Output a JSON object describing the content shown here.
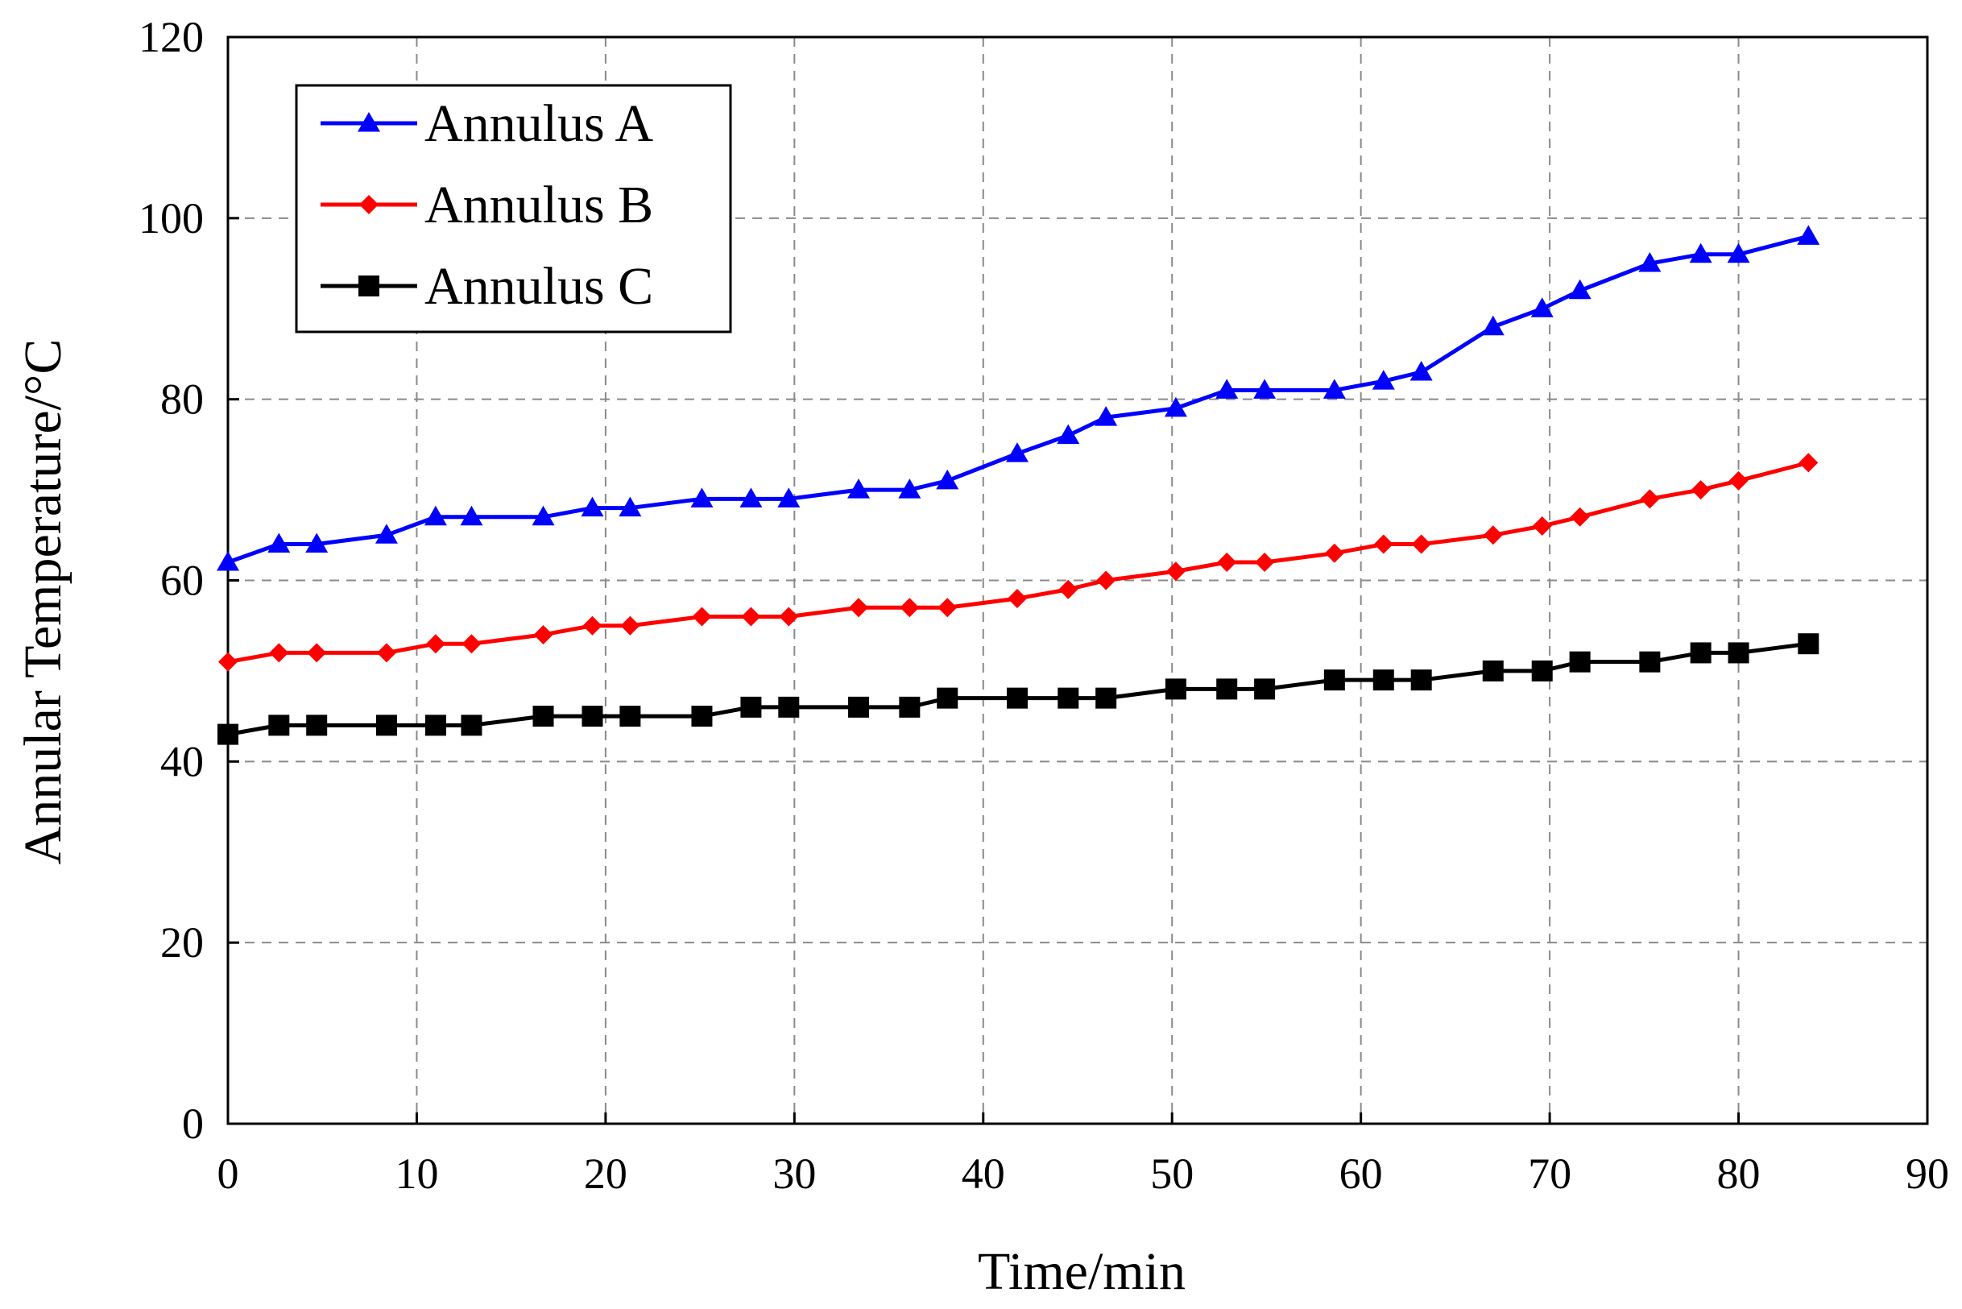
{
  "chart_data": {
    "type": "line",
    "title": "",
    "xlabel": "Time/min",
    "ylabel": "Annular Temperature/°C",
    "xlim": [
      0,
      90
    ],
    "ylim": [
      0,
      120
    ],
    "xticks": [
      0,
      10,
      20,
      30,
      40,
      50,
      60,
      70,
      80,
      90
    ],
    "yticks": [
      0,
      20,
      40,
      60,
      80,
      100,
      120
    ],
    "grid": true,
    "legend_position": "top-left",
    "series": [
      {
        "name": "Annulus A",
        "color": "#0000ff",
        "marker": "triangle",
        "x": [
          0,
          2.7,
          4.7,
          8.4,
          11,
          12.9,
          16.7,
          19.3,
          21.3,
          25.1,
          27.7,
          29.7,
          33.4,
          36.1,
          38.1,
          41.8,
          44.5,
          46.5,
          50.2,
          52.9,
          54.9,
          58.6,
          61.2,
          63.2,
          67,
          69.6,
          71.6,
          75.3,
          78,
          80,
          83.7
        ],
        "values": [
          62,
          64,
          64,
          65,
          67,
          67,
          67,
          68,
          68,
          69,
          69,
          69,
          70,
          70,
          71,
          74,
          76,
          78,
          79,
          81,
          81,
          81,
          82,
          83,
          88,
          90,
          92,
          95,
          96,
          96,
          98
        ]
      },
      {
        "name": "Annulus B",
        "color": "#ff0000",
        "marker": "diamond",
        "x": [
          0,
          2.7,
          4.7,
          8.4,
          11,
          12.9,
          16.7,
          19.3,
          21.3,
          25.1,
          27.7,
          29.7,
          33.4,
          36.1,
          38.1,
          41.8,
          44.5,
          46.5,
          50.2,
          52.9,
          54.9,
          58.6,
          61.2,
          63.2,
          67,
          69.6,
          71.6,
          75.3,
          78,
          80,
          83.7
        ],
        "values": [
          51,
          52,
          52,
          52,
          53,
          53,
          54,
          55,
          55,
          56,
          56,
          56,
          57,
          57,
          57,
          58,
          59,
          60,
          61,
          62,
          62,
          63,
          64,
          64,
          65,
          66,
          67,
          69,
          70,
          71,
          73
        ]
      },
      {
        "name": "Annulus C",
        "color": "#000000",
        "marker": "square",
        "x": [
          0,
          2.7,
          4.7,
          8.4,
          11,
          12.9,
          16.7,
          19.3,
          21.3,
          25.1,
          27.7,
          29.7,
          33.4,
          36.1,
          38.1,
          41.8,
          44.5,
          46.5,
          50.2,
          52.9,
          54.9,
          58.6,
          61.2,
          63.2,
          67,
          69.6,
          71.6,
          75.3,
          78,
          80,
          83.7
        ],
        "values": [
          43,
          44,
          44,
          44,
          44,
          44,
          45,
          45,
          45,
          45,
          46,
          46,
          46,
          46,
          47,
          47,
          47,
          47,
          48,
          48,
          48,
          49,
          49,
          49,
          50,
          50,
          51,
          51,
          52,
          52,
          53
        ]
      }
    ]
  }
}
